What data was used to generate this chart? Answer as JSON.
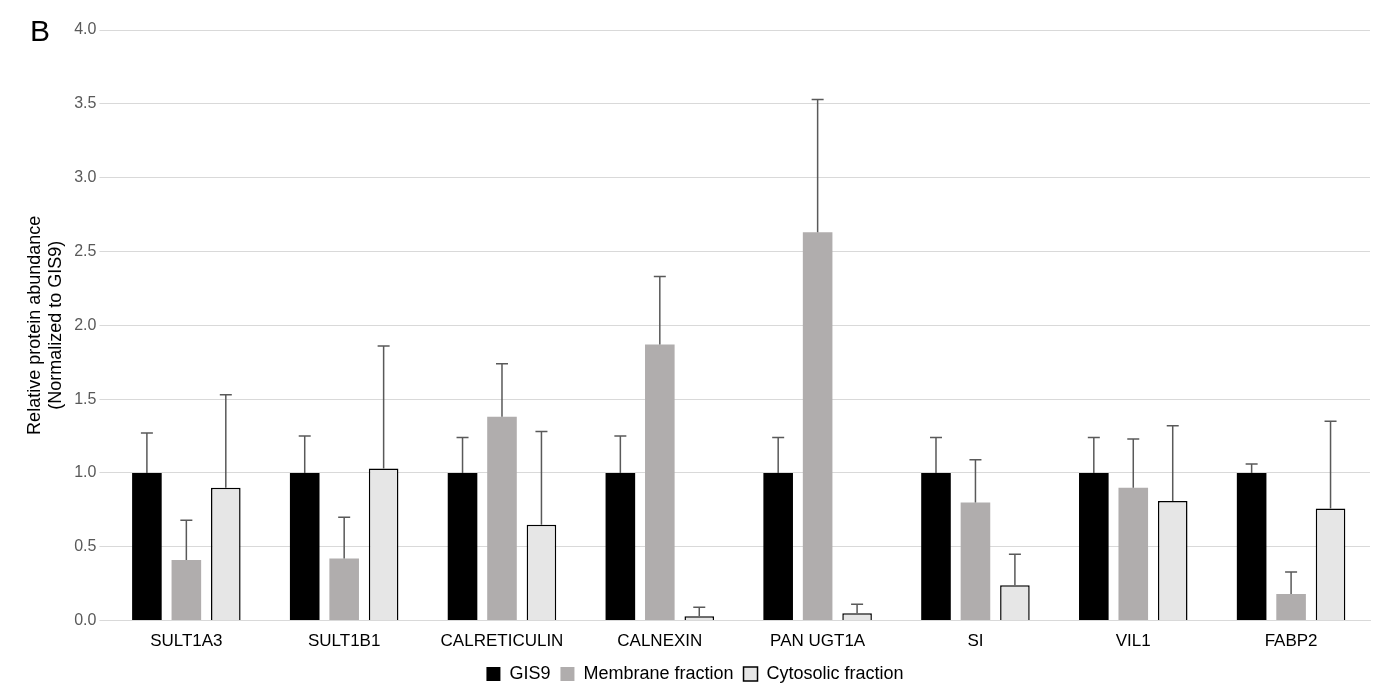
{
  "chart_data": {
    "type": "bar",
    "ylabel": "Relative protein abundance\n(Normalized to GIS9)",
    "annotations": [
      "B"
    ],
    "categories": [
      "SULT1A3",
      "SULT1B1",
      "CALRETICULIN",
      "CALNEXIN",
      "PAN UGT1A",
      "SI",
      "VIL1",
      "FABP2"
    ],
    "series": [
      {
        "name": "GIS9",
        "color": "#000000",
        "values": [
          1,
          1,
          1,
          1,
          1,
          1,
          1,
          1
        ],
        "errors": [
          [
            1,
            1.27
          ],
          [
            1,
            1.25
          ],
          [
            1,
            1.24
          ],
          [
            1,
            1.25
          ],
          [
            1,
            1.24
          ],
          [
            1,
            1.24
          ],
          [
            1,
            1.24
          ],
          [
            1,
            1.06
          ]
        ]
      },
      {
        "name": "Membrane fraction",
        "color": "#b0adad",
        "values": [
          0.41,
          0.42,
          1.38,
          1.87,
          2.63,
          0.8,
          0.9,
          0.18
        ],
        "errors": [
          [
            0.41,
            0.68
          ],
          [
            0.42,
            0.7
          ],
          [
            1.38,
            1.74
          ],
          [
            1.87,
            2.33
          ],
          [
            2.63,
            3.53
          ],
          [
            0.8,
            1.09
          ],
          [
            0.9,
            1.23
          ],
          [
            0.18,
            0.33
          ]
        ]
      },
      {
        "name": "Cytosolic fraction",
        "color": "#e6e6e6",
        "values": [
          0.9,
          1.03,
          0.65,
          0.03,
          0.05,
          0.24,
          0.81,
          0.76
        ],
        "errors": [
          [
            0.9,
            1.53
          ],
          [
            1.03,
            1.86
          ],
          [
            0.65,
            1.28
          ],
          [
            0.03,
            0.09
          ],
          [
            0.05,
            0.11
          ],
          [
            0.24,
            0.45
          ],
          [
            0.81,
            1.32
          ],
          [
            0.76,
            1.35
          ]
        ]
      }
    ],
    "ylim": [
      0,
      4
    ],
    "yticks": [
      {
        "value": 0,
        "label": "0.0"
      },
      {
        "value": 0.5,
        "label": "0.5"
      },
      {
        "value": 1,
        "label": "1.0"
      },
      {
        "value": 1.5,
        "label": "1.5"
      },
      {
        "value": 2,
        "label": "2.0"
      },
      {
        "value": 2.5,
        "label": "2.5"
      },
      {
        "value": 3,
        "label": "3.0"
      },
      {
        "value": 3.5,
        "label": "3.5"
      },
      {
        "value": 4,
        "label": "4.0"
      }
    ],
    "grid": "y",
    "legend": "bottom"
  }
}
